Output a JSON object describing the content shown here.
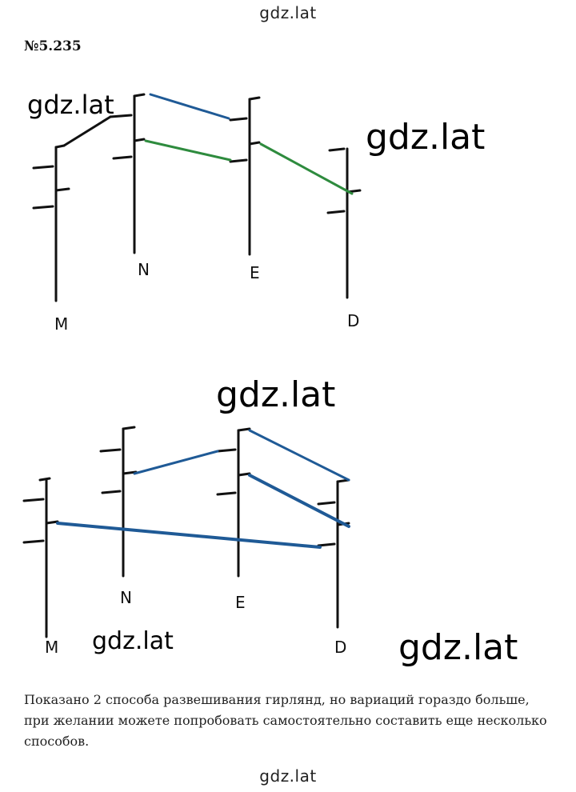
{
  "site": {
    "top": "gdz.lat",
    "bottom": "gdz.lat"
  },
  "task_number": "№5.235",
  "watermarks": [
    "gdz.lat",
    "gdz.lat",
    "gdz.lat",
    "gdz.lat",
    "gdz.lat"
  ],
  "diagram1": {
    "poles": [
      "M",
      "N",
      "E",
      "D"
    ]
  },
  "diagram2": {
    "poles": [
      "M",
      "N",
      "E",
      "D"
    ]
  },
  "caption": "Показано 2 способа развешивания гирлянд, но вариаций гораздо больше, при желании можете попробовать самостоятельно составить еще несколько способов.",
  "colors": {
    "pole": "#111111",
    "garland_blue": "#1f5a96",
    "garland_green": "#2e8b3e"
  }
}
